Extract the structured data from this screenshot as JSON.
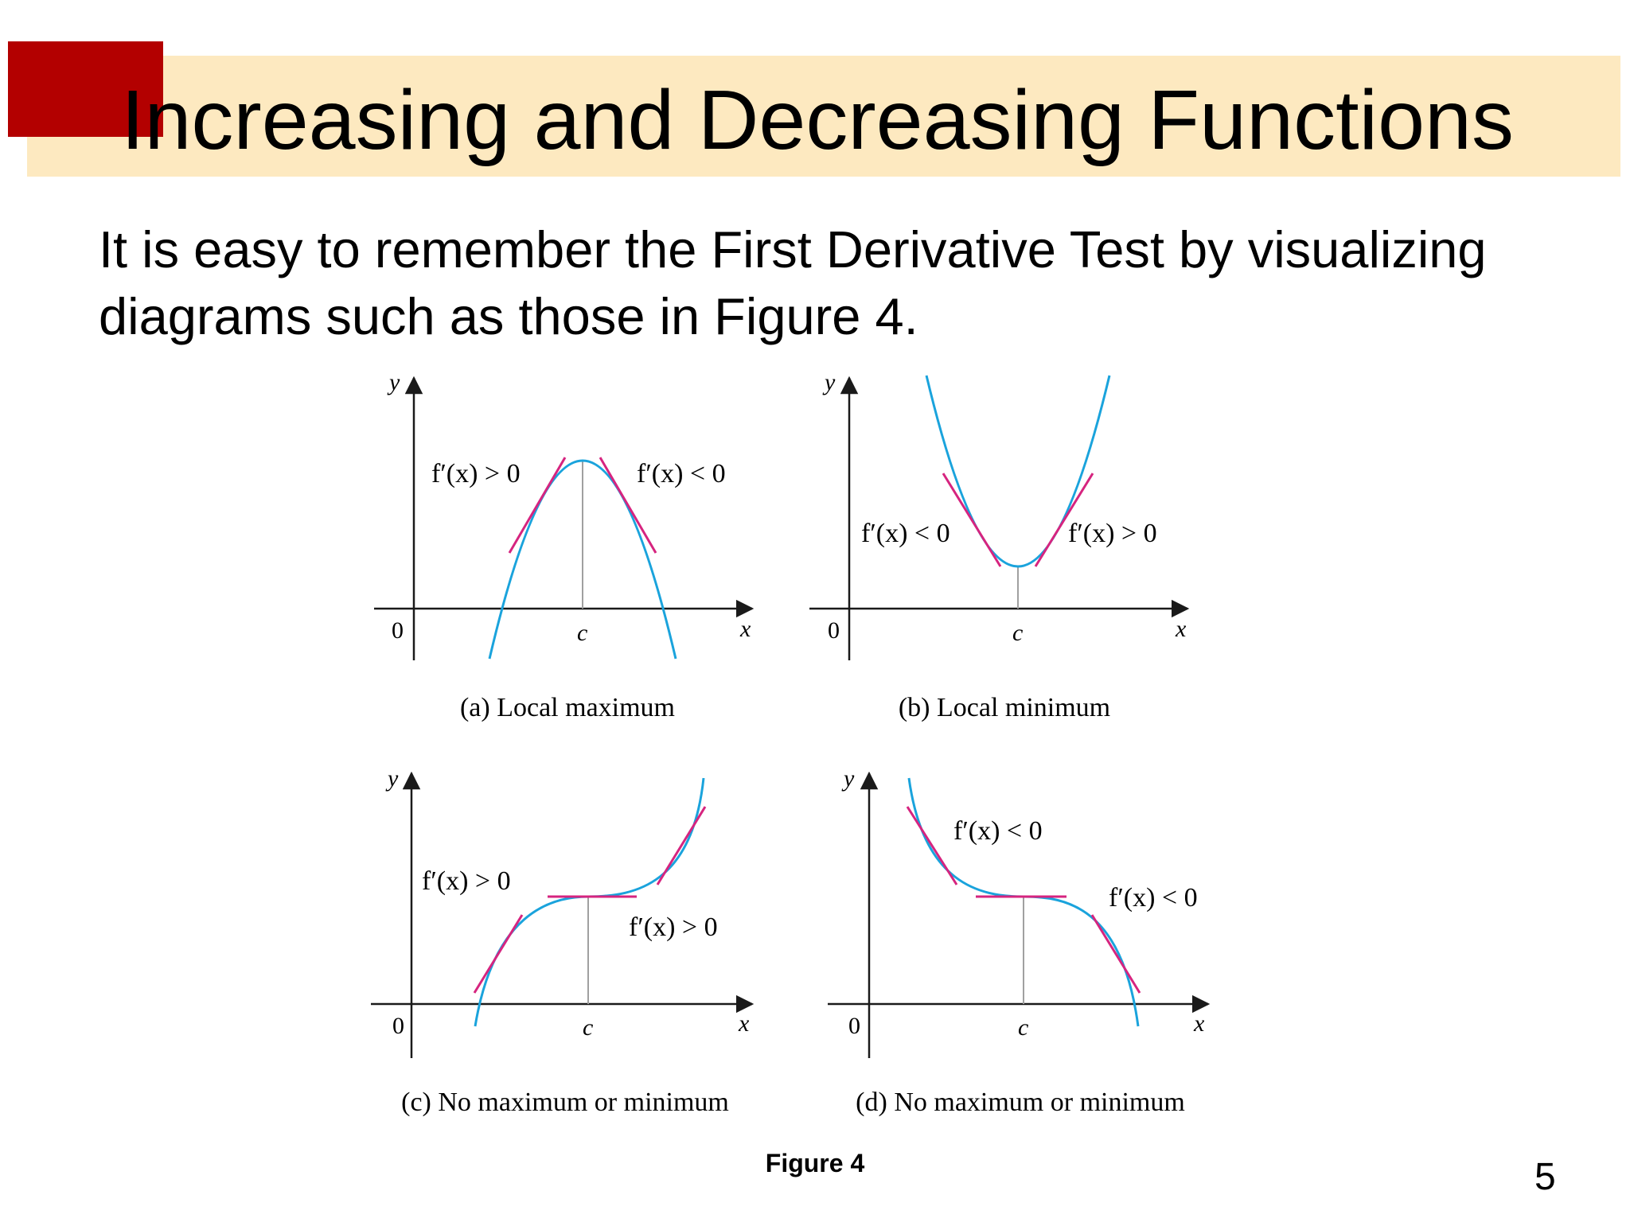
{
  "slide": {
    "title": "Increasing and Decreasing Functions",
    "body": "It is easy to remember the First Derivative Test by visualizing diagrams such as those in Figure 4.",
    "figure_caption": "Figure 4",
    "page_number": "5"
  },
  "colors": {
    "title_band": "#fde9c0",
    "red_square": "#b30000",
    "curve": "#1aa3dc",
    "tangent": "#d6247f",
    "axis": "#1a1a1a",
    "guide": "#a0a0a0"
  },
  "panels": [
    {
      "caption": "(a) Local maximum",
      "axis_y": "y",
      "axis_x": "x",
      "origin": "0",
      "point": "c",
      "left_label": "f′(x) > 0",
      "right_label": "f′(x) < 0"
    },
    {
      "caption": "(b) Local minimum",
      "axis_y": "y",
      "axis_x": "x",
      "origin": "0",
      "point": "c",
      "left_label": "f′(x) < 0",
      "right_label": "f′(x) > 0"
    },
    {
      "caption": "(c) No maximum or minimum",
      "axis_y": "y",
      "axis_x": "x",
      "origin": "0",
      "point": "c",
      "left_label": "f′(x) > 0",
      "right_label": "f′(x) > 0"
    },
    {
      "caption": "(d) No maximum or minimum",
      "axis_y": "y",
      "axis_x": "x",
      "origin": "0",
      "point": "c",
      "left_label": "f′(x) < 0",
      "right_label": "f′(x) < 0"
    }
  ]
}
